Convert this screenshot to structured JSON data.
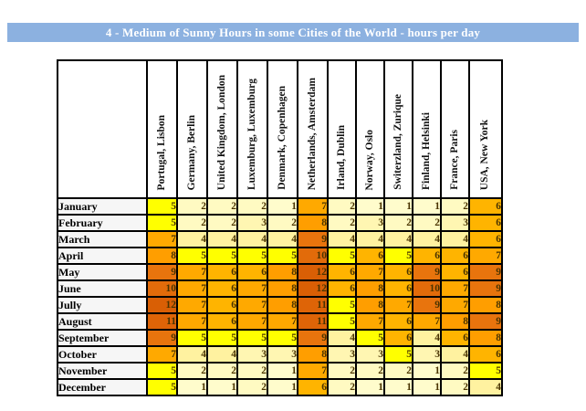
{
  "title": "4 - Medium of Sunny Hours in some Cities of the World - hours per day",
  "chart_data": {
    "type": "heatmap",
    "title": "4 - Medium of Sunny Hours in some Cities of the World - hours per day",
    "columns": [
      "Portugal, Lisbon",
      "Germany, Berlin",
      "United Kingdom, London",
      "Luxemburg, Luxemburg",
      "Denmark, Copenhagen",
      "Netherlands, Amsterdam",
      "Irland, Dublin",
      "Norway, Oslo",
      "Switerzland, Zurique",
      "Finland, Helsinki",
      "France, Paris",
      "USA, New York"
    ],
    "rows": [
      "January",
      "February",
      "March",
      "April",
      "May",
      "June",
      "Jully",
      "August",
      "September",
      "October",
      "November",
      "December"
    ],
    "values": [
      [
        5,
        2,
        2,
        2,
        1,
        7,
        2,
        1,
        1,
        1,
        2,
        6
      ],
      [
        5,
        2,
        2,
        3,
        2,
        8,
        2,
        3,
        2,
        2,
        3,
        6
      ],
      [
        7,
        4,
        4,
        4,
        4,
        9,
        4,
        4,
        4,
        4,
        4,
        6
      ],
      [
        8,
        5,
        5,
        5,
        5,
        10,
        5,
        6,
        5,
        6,
        6,
        7
      ],
      [
        9,
        7,
        6,
        6,
        8,
        12,
        6,
        7,
        6,
        9,
        6,
        9
      ],
      [
        10,
        7,
        6,
        7,
        8,
        12,
        6,
        8,
        6,
        10,
        7,
        9
      ],
      [
        12,
        7,
        6,
        7,
        8,
        11,
        5,
        8,
        7,
        9,
        7,
        8
      ],
      [
        11,
        7,
        6,
        7,
        7,
        11,
        5,
        7,
        6,
        7,
        8,
        9
      ],
      [
        9,
        5,
        5,
        5,
        5,
        9,
        4,
        5,
        6,
        4,
        6,
        8
      ],
      [
        7,
        4,
        4,
        3,
        3,
        8,
        3,
        3,
        5,
        3,
        4,
        6
      ],
      [
        5,
        2,
        2,
        2,
        1,
        7,
        2,
        2,
        2,
        1,
        2,
        5
      ],
      [
        5,
        1,
        1,
        2,
        1,
        6,
        2,
        1,
        1,
        1,
        2,
        4
      ]
    ],
    "value_range": [
      1,
      12
    ],
    "legend": "none",
    "grid": "on"
  },
  "color_scale": {
    "1": "#FFFCCC",
    "2": "#FFFAC2",
    "3": "#FFF6B2",
    "4": "#FFF2A0",
    "5": "#FFFF00",
    "6": "#FFB400",
    "7": "#FFA900",
    "8": "#FF9E00",
    "9": "#E8740D",
    "10": "#E26B0A",
    "11": "#DE6407",
    "12": "#D95F05"
  },
  "theme": {
    "title_bg": "#8CB1E0",
    "title_text": "#FFFFFF",
    "label_bg": "#F6F6F6",
    "grid": "#000000",
    "number_text": "#4A3400"
  }
}
